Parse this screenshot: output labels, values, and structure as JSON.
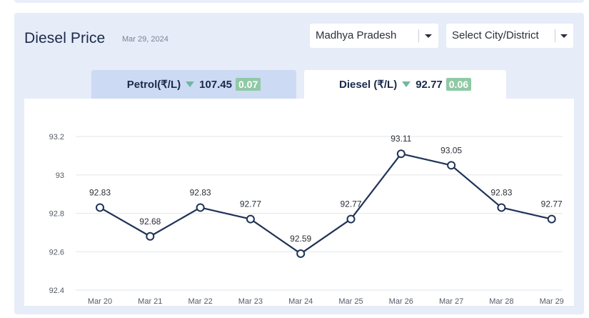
{
  "header": {
    "title": "Diesel Price",
    "date": "Mar 29, 2024"
  },
  "filters": {
    "state": "Madhya Pradesh",
    "city": "Select City/District"
  },
  "tabs": {
    "petrol": {
      "label": "Petrol(₹/L)",
      "price": "107.45",
      "change": "0.07",
      "trend": "down"
    },
    "diesel": {
      "label": "Diesel (₹/L)",
      "price": "92.77",
      "change": "0.06",
      "trend": "down"
    }
  },
  "colors": {
    "line": "#1f3357",
    "grid": "#e3e6ec",
    "badge": "#8fc9a5",
    "trend_down": "#6fb8a0",
    "active_tab": "#ffffff",
    "inactive_tab": "#cddaf4"
  },
  "chart_data": {
    "type": "line",
    "categories": [
      "Mar 20",
      "Mar 21",
      "Mar 22",
      "Mar 23",
      "Mar 24",
      "Mar 25",
      "Mar 26",
      "Mar 27",
      "Mar 28",
      "Mar 29"
    ],
    "values": [
      92.83,
      92.68,
      92.83,
      92.77,
      92.59,
      92.77,
      93.11,
      93.05,
      92.83,
      92.77
    ],
    "ylim": [
      92.4,
      93.2
    ],
    "yticks": [
      "92.4",
      "92.6",
      "92.8",
      "93",
      "93.2"
    ],
    "grid": true,
    "data_labels": true
  }
}
